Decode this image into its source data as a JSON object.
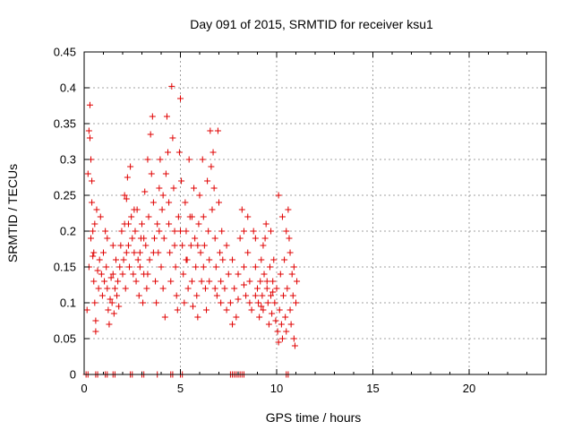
{
  "chart_data": {
    "type": "scatter",
    "title": "Day 091 of 2015, SRMTID for receiver ksu1",
    "xlabel": "GPS time / hours",
    "ylabel": "SRMTID / TECUs",
    "xlim": [
      0,
      24
    ],
    "ylim": [
      0,
      0.45
    ],
    "xticks": [
      0,
      5,
      10,
      15,
      20
    ],
    "yticks": [
      0,
      0.05,
      0.1,
      0.15,
      0.2,
      0.25,
      0.3,
      0.35,
      0.4,
      0.45
    ],
    "ytick_labels": [
      "0",
      "0.05",
      "0.1",
      "0.15",
      "0.2",
      "0.25",
      "0.3",
      "0.35",
      "0.4",
      "0.45"
    ],
    "xtick_labels": [
      "0",
      "5",
      "10",
      "15",
      "20"
    ],
    "grid": true,
    "marker": "plus",
    "color": "#e00000",
    "series": [
      {
        "name": "SRMTID",
        "points": [
          [
            0.15,
            0.09
          ],
          [
            0.2,
            0.28
          ],
          [
            0.25,
            0.34
          ],
          [
            0.3,
            0.376
          ],
          [
            0.3,
            0.33
          ],
          [
            0.35,
            0.3
          ],
          [
            0.4,
            0.27
          ],
          [
            0.4,
            0.24
          ],
          [
            0.45,
            0.2
          ],
          [
            0.5,
            0.17
          ],
          [
            0.5,
            0.13
          ],
          [
            0.55,
            0.1
          ],
          [
            0.6,
            0.075
          ],
          [
            0.6,
            0.06
          ],
          [
            0.25,
            0.15
          ],
          [
            0.35,
            0.19
          ],
          [
            0.45,
            0.165
          ],
          [
            0.55,
            0.21
          ],
          [
            0.65,
            0.23
          ],
          [
            0.7,
            0.145
          ],
          [
            0.75,
            0.12
          ],
          [
            0.8,
            0.16
          ],
          [
            0.85,
            0.22
          ],
          [
            0.9,
            0.14
          ],
          [
            0.95,
            0.11
          ],
          [
            1.0,
            0.17
          ],
          [
            1.05,
            0.13
          ],
          [
            1.1,
            0.2
          ],
          [
            1.15,
            0.15
          ],
          [
            1.2,
            0.12
          ],
          [
            1.25,
            0.09
          ],
          [
            1.3,
            0.07
          ],
          [
            1.35,
            0.105
          ],
          [
            1.4,
            0.135
          ],
          [
            1.45,
            0.1
          ],
          [
            1.5,
            0.14
          ],
          [
            1.55,
            0.085
          ],
          [
            1.6,
            0.12
          ],
          [
            1.65,
            0.16
          ],
          [
            1.7,
            0.11
          ],
          [
            1.75,
            0.13
          ],
          [
            1.8,
            0.095
          ],
          [
            1.85,
            0.15
          ],
          [
            1.9,
            0.18
          ],
          [
            1.95,
            0.2
          ],
          [
            2.0,
            0.14
          ],
          [
            2.05,
            0.16
          ],
          [
            2.1,
            0.21
          ],
          [
            2.15,
            0.12
          ],
          [
            2.2,
            0.17
          ],
          [
            2.2,
            0.245
          ],
          [
            2.25,
            0.275
          ],
          [
            2.3,
            0.18
          ],
          [
            2.35,
            0.15
          ],
          [
            2.4,
            0.29
          ],
          [
            2.45,
            0.22
          ],
          [
            2.5,
            0.19
          ],
          [
            2.55,
            0.14
          ],
          [
            2.6,
            0.17
          ],
          [
            2.65,
            0.2
          ],
          [
            2.7,
            0.13
          ],
          [
            2.75,
            0.23
          ],
          [
            2.8,
            0.16
          ],
          [
            2.85,
            0.11
          ],
          [
            2.9,
            0.15
          ],
          [
            2.95,
            0.19
          ],
          [
            3.0,
            0.21
          ],
          [
            3.05,
            0.1
          ],
          [
            3.1,
            0.14
          ],
          [
            3.15,
            0.255
          ],
          [
            3.2,
            0.18
          ],
          [
            3.25,
            0.12
          ],
          [
            3.3,
            0.3
          ],
          [
            3.35,
            0.22
          ],
          [
            3.4,
            0.16
          ],
          [
            3.45,
            0.335
          ],
          [
            3.5,
            0.28
          ],
          [
            3.55,
            0.36
          ],
          [
            3.6,
            0.24
          ],
          [
            3.65,
            0.19
          ],
          [
            3.7,
            0.13
          ],
          [
            3.75,
            0.1
          ],
          [
            3.8,
            0.21
          ],
          [
            3.85,
            0.17
          ],
          [
            3.9,
            0.26
          ],
          [
            3.95,
            0.3
          ],
          [
            4.0,
            0.15
          ],
          [
            4.05,
            0.23
          ],
          [
            4.1,
            0.12
          ],
          [
            4.15,
            0.19
          ],
          [
            4.2,
            0.08
          ],
          [
            4.25,
            0.28
          ],
          [
            4.3,
            0.36
          ],
          [
            4.35,
            0.31
          ],
          [
            4.4,
            0.24
          ],
          [
            4.45,
            0.17
          ],
          [
            4.5,
            0.13
          ],
          [
            4.55,
            0.402
          ],
          [
            4.6,
            0.33
          ],
          [
            4.65,
            0.26
          ],
          [
            4.7,
            0.2
          ],
          [
            4.75,
            0.15
          ],
          [
            4.8,
            0.11
          ],
          [
            4.85,
            0.09
          ],
          [
            4.9,
            0.22
          ],
          [
            4.95,
            0.31
          ],
          [
            5.0,
            0.385
          ],
          [
            5.05,
            0.27
          ],
          [
            5.1,
            0.18
          ],
          [
            5.15,
            0.14
          ],
          [
            5.2,
            0.1
          ],
          [
            5.25,
            0.24
          ],
          [
            5.3,
            0.2
          ],
          [
            5.35,
            0.16
          ],
          [
            5.4,
            0.12
          ],
          [
            5.45,
            0.3
          ],
          [
            5.5,
            0.22
          ],
          [
            5.55,
            0.18
          ],
          [
            5.6,
            0.13
          ],
          [
            5.65,
            0.095
          ],
          [
            5.7,
            0.26
          ],
          [
            5.75,
            0.19
          ],
          [
            5.8,
            0.15
          ],
          [
            5.85,
            0.11
          ],
          [
            5.9,
            0.08
          ],
          [
            5.95,
            0.21
          ],
          [
            6.0,
            0.25
          ],
          [
            6.05,
            0.17
          ],
          [
            6.1,
            0.13
          ],
          [
            6.15,
            0.3
          ],
          [
            6.2,
            0.22
          ],
          [
            6.25,
            0.18
          ],
          [
            6.3,
            0.12
          ],
          [
            6.35,
            0.09
          ],
          [
            6.4,
            0.27
          ],
          [
            6.45,
            0.2
          ],
          [
            6.5,
            0.16
          ],
          [
            6.55,
            0.34
          ],
          [
            6.6,
            0.29
          ],
          [
            6.65,
            0.23
          ],
          [
            6.7,
            0.31
          ],
          [
            6.75,
            0.26
          ],
          [
            6.8,
            0.19
          ],
          [
            6.85,
            0.15
          ],
          [
            6.9,
            0.11
          ],
          [
            6.95,
            0.34
          ],
          [
            7.0,
            0.24
          ],
          [
            7.05,
            0.17
          ],
          [
            7.1,
            0.13
          ],
          [
            7.15,
            0.2
          ],
          [
            7.2,
            0.16
          ],
          [
            7.3,
            0.12
          ],
          [
            7.4,
            0.18
          ],
          [
            7.5,
            0.14
          ],
          [
            7.6,
            0.1
          ],
          [
            7.7,
            0.16
          ],
          [
            7.8,
            0.12
          ],
          [
            7.9,
            0.08
          ],
          [
            8.0,
            0.14
          ],
          [
            8.1,
            0.19
          ],
          [
            8.2,
            0.23
          ],
          [
            8.3,
            0.15
          ],
          [
            8.4,
            0.11
          ],
          [
            8.5,
            0.17
          ],
          [
            8.6,
            0.13
          ],
          [
            8.7,
            0.09
          ],
          [
            8.8,
            0.2
          ],
          [
            8.9,
            0.15
          ],
          [
            9.0,
            0.12
          ],
          [
            9.05,
            0.1
          ],
          [
            9.1,
            0.08
          ],
          [
            9.15,
            0.13
          ],
          [
            9.2,
            0.16
          ],
          [
            9.25,
            0.11
          ],
          [
            9.3,
            0.09
          ],
          [
            9.35,
            0.14
          ],
          [
            9.4,
            0.19
          ],
          [
            9.45,
            0.21
          ],
          [
            9.5,
            0.12
          ],
          [
            9.55,
            0.1
          ],
          [
            9.6,
            0.07
          ],
          [
            9.65,
            0.15
          ],
          [
            9.7,
            0.11
          ],
          [
            9.75,
            0.085
          ],
          [
            9.8,
            0.13
          ],
          [
            9.85,
            0.16
          ],
          [
            9.9,
            0.1
          ],
          [
            9.95,
            0.075
          ],
          [
            10.0,
            0.12
          ],
          [
            10.05,
            0.06
          ],
          [
            10.1,
            0.045
          ],
          [
            10.15,
            0.09
          ],
          [
            10.2,
            0.14
          ],
          [
            10.25,
            0.07
          ],
          [
            10.3,
            0.05
          ],
          [
            10.35,
            0.11
          ],
          [
            10.4,
            0.16
          ],
          [
            10.45,
            0.08
          ],
          [
            10.5,
            0.06
          ],
          [
            10.55,
            0.12
          ],
          [
            10.6,
            0.23
          ],
          [
            10.65,
            0.19
          ],
          [
            10.7,
            0.09
          ],
          [
            10.75,
            0.07
          ],
          [
            10.8,
            0.14
          ],
          [
            10.85,
            0.11
          ],
          [
            10.9,
            0.05
          ],
          [
            10.95,
            0.04
          ],
          [
            11.0,
            0.1
          ],
          [
            11.05,
            0.13
          ],
          [
            10.1,
            0.25
          ],
          [
            10.3,
            0.22
          ],
          [
            10.5,
            0.2
          ],
          [
            10.7,
            0.17
          ],
          [
            10.9,
            0.15
          ],
          [
            9.3,
            0.18
          ],
          [
            9.7,
            0.2
          ],
          [
            8.5,
            0.22
          ],
          [
            8.9,
            0.19
          ],
          [
            8.3,
            0.2
          ],
          [
            1.2,
            0.19
          ],
          [
            1.5,
            0.18
          ],
          [
            2.1,
            0.25
          ],
          [
            2.3,
            0.21
          ],
          [
            2.6,
            0.23
          ],
          [
            2.9,
            0.17
          ],
          [
            3.1,
            0.19
          ],
          [
            3.3,
            0.14
          ],
          [
            3.6,
            0.17
          ],
          [
            3.9,
            0.2
          ],
          [
            4.1,
            0.25
          ],
          [
            4.4,
            0.21
          ],
          [
            4.7,
            0.18
          ],
          [
            5.0,
            0.2
          ],
          [
            5.3,
            0.16
          ],
          [
            5.6,
            0.22
          ],
          [
            5.9,
            0.18
          ],
          [
            6.2,
            0.15
          ],
          [
            6.5,
            0.13
          ],
          [
            6.8,
            0.12
          ],
          [
            7.1,
            0.1
          ],
          [
            7.4,
            0.09
          ],
          [
            7.7,
            0.07
          ],
          [
            8.0,
            0.105
          ],
          [
            8.3,
            0.125
          ],
          [
            8.6,
            0.1
          ],
          [
            8.9,
            0.11
          ],
          [
            9.2,
            0.095
          ],
          [
            9.5,
            0.13
          ],
          [
            9.8,
            0.115
          ],
          [
            0.1,
            0
          ],
          [
            0.2,
            0
          ],
          [
            0.6,
            0
          ],
          [
            0.7,
            0
          ],
          [
            1.1,
            0
          ],
          [
            1.2,
            0
          ],
          [
            1.5,
            0
          ],
          [
            1.6,
            0
          ],
          [
            2.4,
            0
          ],
          [
            2.5,
            0
          ],
          [
            3.0,
            0
          ],
          [
            3.1,
            0
          ],
          [
            3.8,
            0
          ],
          [
            4.5,
            0
          ],
          [
            4.6,
            0
          ],
          [
            5.0,
            0
          ],
          [
            5.1,
            0
          ],
          [
            7.6,
            0
          ],
          [
            7.7,
            0
          ],
          [
            7.8,
            0
          ],
          [
            7.9,
            0
          ],
          [
            8.0,
            0
          ],
          [
            8.1,
            0
          ],
          [
            8.2,
            0
          ],
          [
            8.3,
            0
          ],
          [
            10.5,
            0
          ],
          [
            10.6,
            0
          ]
        ]
      }
    ]
  }
}
